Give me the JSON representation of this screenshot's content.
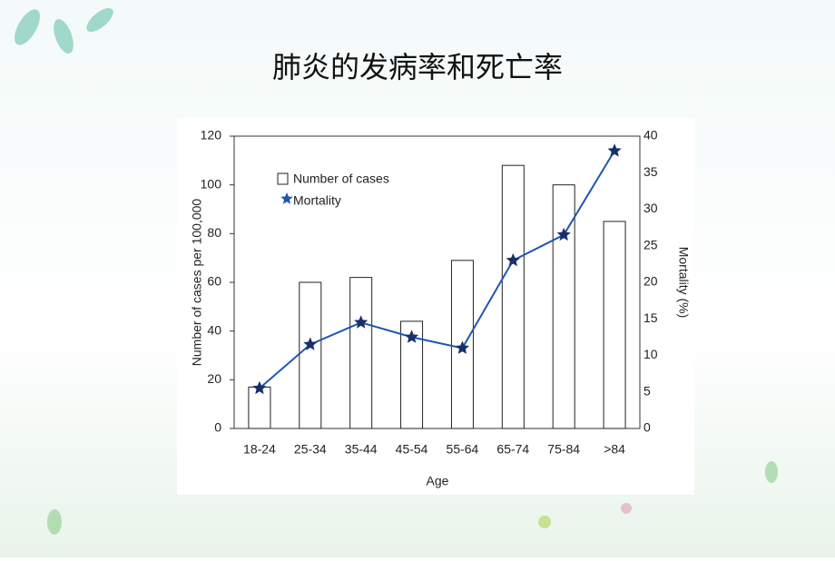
{
  "chart_data": {
    "type": "combo",
    "title": "肺炎的发病率和死亡率",
    "categories": [
      "18-24",
      "25-34",
      "35-44",
      "45-54",
      "55-64",
      "65-74",
      "75-84",
      ">84"
    ],
    "x_label": "Age",
    "y_label": "Number of cases per 100,000",
    "y2_label": "Mortality (%)",
    "ylim": [
      0,
      120
    ],
    "yticks": [
      0,
      20,
      40,
      60,
      80,
      100,
      120
    ],
    "y2lim": [
      0,
      40
    ],
    "y2ticks": [
      0,
      5,
      10,
      15,
      20,
      25,
      30,
      35,
      40
    ],
    "series": [
      {
        "name": "Number of cases",
        "type": "bar",
        "color": "#ffffff",
        "values": [
          17,
          60,
          62,
          44,
          69,
          108,
          100,
          85
        ]
      },
      {
        "name": "Mortality",
        "type": "line",
        "axis": "y2",
        "color": "#1f56b0",
        "values": [
          5.5,
          11.5,
          14.5,
          12.5,
          11,
          23,
          26.5,
          38
        ]
      }
    ]
  }
}
